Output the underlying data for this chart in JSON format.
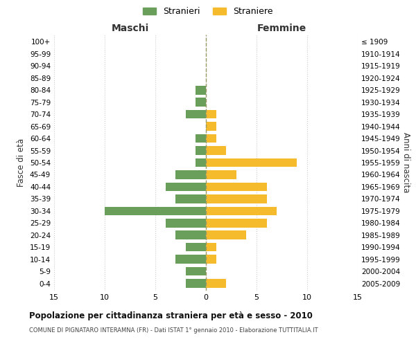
{
  "age_groups": [
    "100+",
    "95-99",
    "90-94",
    "85-89",
    "80-84",
    "75-79",
    "70-74",
    "65-69",
    "60-64",
    "55-59",
    "50-54",
    "45-49",
    "40-44",
    "35-39",
    "30-34",
    "25-29",
    "20-24",
    "15-19",
    "10-14",
    "5-9",
    "0-4"
  ],
  "birth_years": [
    "≤ 1909",
    "1910-1914",
    "1915-1919",
    "1920-1924",
    "1925-1929",
    "1930-1934",
    "1935-1939",
    "1940-1944",
    "1945-1949",
    "1950-1954",
    "1955-1959",
    "1960-1964",
    "1965-1969",
    "1970-1974",
    "1975-1979",
    "1980-1984",
    "1985-1989",
    "1990-1994",
    "1995-1999",
    "2000-2004",
    "2005-2009"
  ],
  "males": [
    0,
    0,
    0,
    0,
    1,
    1,
    2,
    0,
    1,
    1,
    1,
    3,
    4,
    3,
    10,
    4,
    3,
    2,
    3,
    2,
    2
  ],
  "females": [
    0,
    0,
    0,
    0,
    0,
    0,
    1,
    1,
    1,
    2,
    9,
    3,
    6,
    6,
    7,
    6,
    4,
    1,
    1,
    0,
    2
  ],
  "male_color": "#6a9e5b",
  "female_color": "#f5bb2c",
  "background_color": "#ffffff",
  "grid_color": "#cccccc",
  "title": "Popolazione per cittadinanza straniera per età e sesso - 2010",
  "subtitle": "COMUNE DI PIGNATARO INTERAMNA (FR) - Dati ISTAT 1° gennaio 2010 - Elaborazione TUTTITALIA.IT",
  "ylabel_left": "Fasce di età",
  "ylabel_right": "Anni di nascita",
  "xlabel_left": "Maschi",
  "xlabel_right": "Femmine",
  "legend_male": "Stranieri",
  "legend_female": "Straniere",
  "xlim": 15,
  "center_line_color": "#999966"
}
